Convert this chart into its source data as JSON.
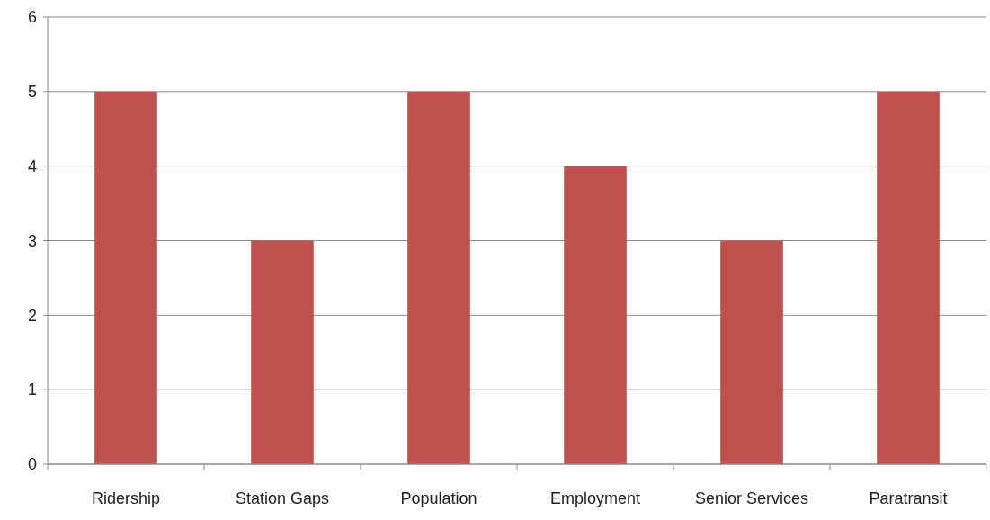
{
  "chart_data": {
    "type": "bar",
    "categories": [
      "Ridership",
      "Station Gaps",
      "Population",
      "Employment",
      "Senior Services",
      "Paratransit"
    ],
    "values": [
      5,
      3,
      5,
      4,
      3,
      5
    ],
    "color": "#c0504d",
    "ylim": [
      0,
      6
    ],
    "yticks": [
      0,
      1,
      2,
      3,
      4,
      5,
      6
    ],
    "grid": "y"
  }
}
